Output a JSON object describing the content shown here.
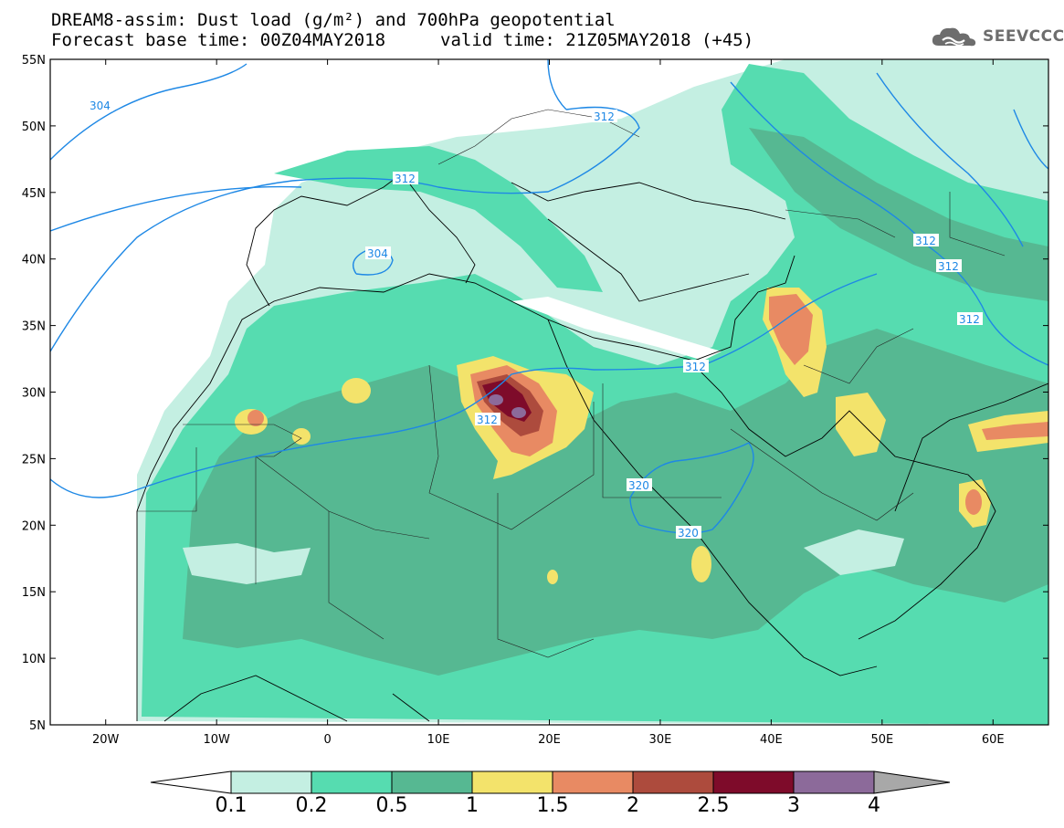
{
  "header": {
    "title_line1": "DREAM8-assim: Dust load (g/m²) and 700hPa geopotential",
    "title_line2_left": "Forecast base time: 00Z04MAY2018",
    "title_line2_right": "valid time: 21Z05MAY2018 (+45)"
  },
  "logo": {
    "text": "SEEVCCC",
    "icon": "cloud-icon"
  },
  "map": {
    "lon_range": [
      -25,
      65
    ],
    "lat_range": [
      5,
      55
    ],
    "lat_labels": [
      "55N",
      "50N",
      "45N",
      "40N",
      "35N",
      "30N",
      "25N",
      "20N",
      "15N",
      "10N",
      "5N"
    ],
    "lon_labels": [
      "20W",
      "10W",
      "0",
      "10E",
      "20E",
      "30E",
      "40E",
      "50E",
      "60E"
    ],
    "isolines": [
      "304",
      "304",
      "312",
      "312",
      "312",
      "312",
      "312",
      "312",
      "312",
      "320",
      "320"
    ],
    "isoline_color": "#1e88e5"
  },
  "colorbar": {
    "labels": [
      "0.1",
      "0.2",
      "0.5",
      "1",
      "1.5",
      "2",
      "2.5",
      "3",
      "4"
    ],
    "colors": [
      "#c4efe2",
      "#56dcb0",
      "#56b892",
      "#f3e36b",
      "#e88a63",
      "#ad4b3d",
      "#7e0b2a",
      "#8c6a9a"
    ],
    "low_color": "#ffffff",
    "high_color": "#a8a8a8"
  }
}
